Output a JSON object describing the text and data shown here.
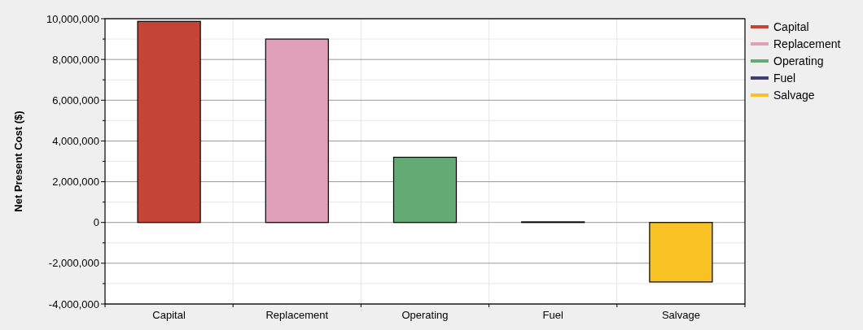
{
  "chart_data": {
    "type": "bar",
    "ylabel": "Net Present Cost ($)",
    "categories": [
      "Capital",
      "Replacement",
      "Operating",
      "Fuel",
      "Salvage"
    ],
    "series": [
      {
        "name": "Capital",
        "color": "#c44536",
        "values": [
          9870000,
          null,
          null,
          null,
          null
        ]
      },
      {
        "name": "Replacement",
        "color": "#e0a0b8",
        "values": [
          null,
          9000000,
          null,
          null,
          null
        ]
      },
      {
        "name": "Operating",
        "color": "#63aa75",
        "values": [
          null,
          null,
          3200000,
          null,
          null
        ]
      },
      {
        "name": "Fuel",
        "color": "#3c3f6e",
        "values": [
          null,
          null,
          null,
          30000,
          null
        ]
      },
      {
        "name": "Salvage",
        "color": "#f8c124",
        "values": [
          null,
          null,
          null,
          null,
          -2920000
        ]
      }
    ],
    "ylim": [
      -4000000,
      10000000
    ],
    "yticks": [
      {
        "value": -4000000,
        "label": "-4,000,000"
      },
      {
        "value": -3000000,
        "label": null
      },
      {
        "value": -2000000,
        "label": "-2,000,000"
      },
      {
        "value": -1000000,
        "label": null
      },
      0,
      {
        "value": 1000000,
        "label": null
      },
      {
        "value": 2000000,
        "label": "2,000,000"
      },
      {
        "value": 3000000,
        "label": null
      },
      {
        "value": 4000000,
        "label": "4,000,000"
      },
      {
        "value": 5000000,
        "label": null
      },
      {
        "value": 6000000,
        "label": "6,000,000"
      },
      {
        "value": 7000000,
        "label": null
      },
      {
        "value": 8000000,
        "label": "8,000,000"
      },
      {
        "value": 9000000,
        "label": null
      },
      {
        "value": 10000000,
        "label": "10,000,000"
      }
    ],
    "grid": true,
    "legend": "right"
  }
}
